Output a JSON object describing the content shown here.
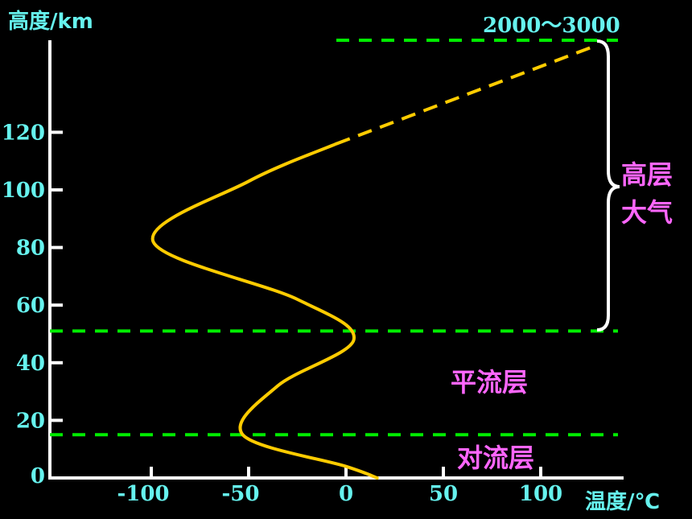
{
  "chart_data": {
    "type": "line",
    "ylabel": "高度/km",
    "xlabel": "温度/℃",
    "top_label": "2000～3000",
    "x_ticks": [
      -100,
      -50,
      0,
      50,
      100
    ],
    "y_ticks": [
      0,
      20,
      40,
      60,
      80,
      100,
      120
    ],
    "x_tick_labels": [
      "-100",
      "-50",
      "0",
      "50",
      "100"
    ],
    "y_tick_labels": [
      "0",
      "20",
      "40",
      "60",
      "80",
      "100",
      "120"
    ],
    "xlim": [
      -150,
      140
    ],
    "ylim": [
      0,
      150
    ],
    "curve_solid": [
      {
        "t": 16,
        "h": 0
      },
      {
        "t": 0,
        "h": 4
      },
      {
        "t": -53,
        "h": 15
      },
      {
        "t": -35,
        "h": 32
      },
      {
        "t": 4,
        "h": 48
      },
      {
        "t": -25,
        "h": 62
      },
      {
        "t": -99,
        "h": 82
      },
      {
        "t": -50,
        "h": 103
      },
      {
        "t": -5,
        "h": 116
      }
    ],
    "curve_dashed": [
      {
        "t": -5,
        "h": 116
      },
      {
        "t": 128,
        "h": 150
      }
    ],
    "boundaries": [
      {
        "name": "tropopause",
        "h": 15
      },
      {
        "name": "stratopause",
        "h": 51
      },
      {
        "name": "top",
        "h": 150
      }
    ],
    "layer_labels": {
      "troposphere": "对流层",
      "stratosphere": "平流层",
      "upper_line1": "高层",
      "upper_line2": "大气"
    },
    "colors": {
      "axis": "#ffffff",
      "tick_text": "#66f2ee",
      "curve": "#ffcc00",
      "boundary": "#00ee00",
      "layer_text": "#ff66ff"
    }
  }
}
